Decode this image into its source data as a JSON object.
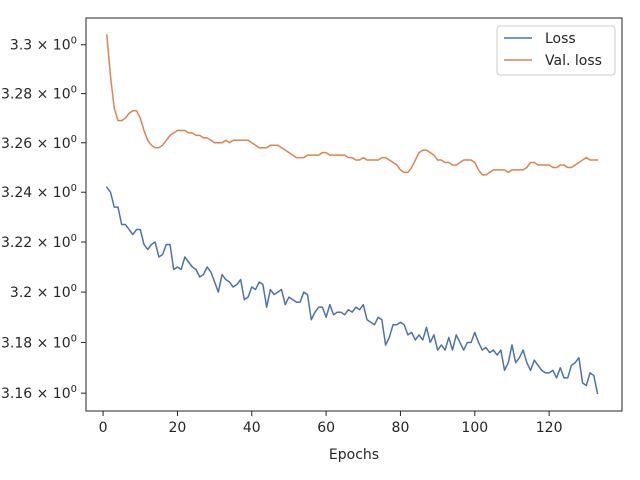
{
  "chart_data": {
    "type": "line",
    "title": "",
    "xlabel": "Epochs",
    "ylabel": "",
    "y_scale": "log",
    "xlim": [
      -4.6,
      139.6
    ],
    "ylim": [
      3.153,
      3.311
    ],
    "grid": false,
    "legend_position": "upper right",
    "x_ticks": [
      0,
      20,
      40,
      60,
      80,
      100,
      120
    ],
    "x_tick_labels": [
      "0",
      "20",
      "40",
      "60",
      "80",
      "100",
      "120"
    ],
    "y_ticks": [
      {
        "value": 3.16,
        "mantissa": "3.16"
      },
      {
        "value": 3.18,
        "mantissa": "3.18"
      },
      {
        "value": 3.2,
        "mantissa": "3.2"
      },
      {
        "value": 3.22,
        "mantissa": "3.22"
      },
      {
        "value": 3.24,
        "mantissa": "3.24"
      },
      {
        "value": 3.26,
        "mantissa": "3.26"
      },
      {
        "value": 3.28,
        "mantissa": "3.28"
      },
      {
        "value": 3.3,
        "mantissa": "3.3"
      }
    ],
    "y_tick_suffix": "× 10",
    "y_tick_exponent": "0",
    "series": [
      {
        "name": "Loss",
        "color": "#4c72b0",
        "x_start": 1,
        "values": [
          3.242,
          3.24,
          3.234,
          3.234,
          3.227,
          3.227,
          3.225,
          3.223,
          3.225,
          3.225,
          3.219,
          3.217,
          3.219,
          3.22,
          3.214,
          3.215,
          3.219,
          3.219,
          3.209,
          3.21,
          3.209,
          3.214,
          3.212,
          3.21,
          3.209,
          3.206,
          3.207,
          3.21,
          3.208,
          3.204,
          3.2,
          3.207,
          3.205,
          3.204,
          3.202,
          3.203,
          3.205,
          3.197,
          3.198,
          3.202,
          3.201,
          3.204,
          3.203,
          3.194,
          3.201,
          3.199,
          3.2,
          3.201,
          3.195,
          3.198,
          3.197,
          3.196,
          3.196,
          3.2,
          3.199,
          3.189,
          3.192,
          3.194,
          3.194,
          3.19,
          3.195,
          3.191,
          3.192,
          3.192,
          3.191,
          3.193,
          3.192,
          3.194,
          3.193,
          3.195,
          3.189,
          3.188,
          3.187,
          3.19,
          3.189,
          3.179,
          3.182,
          3.187,
          3.187,
          3.188,
          3.187,
          3.183,
          3.184,
          3.181,
          3.183,
          3.181,
          3.186,
          3.18,
          3.183,
          3.177,
          3.179,
          3.177,
          3.182,
          3.177,
          3.183,
          3.18,
          3.177,
          3.18,
          3.18,
          3.184,
          3.18,
          3.177,
          3.178,
          3.176,
          3.177,
          3.175,
          3.177,
          3.169,
          3.172,
          3.179,
          3.172,
          3.174,
          3.177,
          3.172,
          3.169,
          3.173,
          3.171,
          3.169,
          3.168,
          3.168,
          3.169,
          3.166,
          3.17,
          3.166,
          3.166,
          3.171,
          3.172,
          3.174,
          3.164,
          3.163,
          3.168,
          3.167,
          3.16
        ]
      },
      {
        "name": "Val. loss",
        "color": "#dd8452",
        "x_start": 1,
        "values": [
          3.304,
          3.287,
          3.274,
          3.269,
          3.269,
          3.27,
          3.272,
          3.273,
          3.273,
          3.27,
          3.265,
          3.261,
          3.259,
          3.258,
          3.258,
          3.259,
          3.261,
          3.263,
          3.264,
          3.265,
          3.265,
          3.265,
          3.264,
          3.264,
          3.263,
          3.263,
          3.262,
          3.262,
          3.261,
          3.26,
          3.26,
          3.26,
          3.261,
          3.26,
          3.261,
          3.261,
          3.261,
          3.261,
          3.261,
          3.26,
          3.259,
          3.258,
          3.258,
          3.258,
          3.259,
          3.259,
          3.259,
          3.258,
          3.257,
          3.256,
          3.255,
          3.254,
          3.254,
          3.254,
          3.255,
          3.255,
          3.255,
          3.255,
          3.256,
          3.256,
          3.255,
          3.255,
          3.255,
          3.255,
          3.255,
          3.254,
          3.254,
          3.253,
          3.253,
          3.254,
          3.253,
          3.253,
          3.253,
          3.253,
          3.254,
          3.254,
          3.253,
          3.252,
          3.251,
          3.249,
          3.248,
          3.248,
          3.25,
          3.253,
          3.256,
          3.257,
          3.257,
          3.256,
          3.255,
          3.253,
          3.253,
          3.252,
          3.252,
          3.251,
          3.251,
          3.252,
          3.253,
          3.253,
          3.253,
          3.252,
          3.249,
          3.247,
          3.247,
          3.248,
          3.249,
          3.249,
          3.249,
          3.249,
          3.248,
          3.249,
          3.249,
          3.249,
          3.249,
          3.25,
          3.252,
          3.252,
          3.251,
          3.251,
          3.251,
          3.251,
          3.25,
          3.25,
          3.251,
          3.251,
          3.25,
          3.25,
          3.251,
          3.252,
          3.253,
          3.254,
          3.253,
          3.253,
          3.253
        ]
      }
    ]
  }
}
